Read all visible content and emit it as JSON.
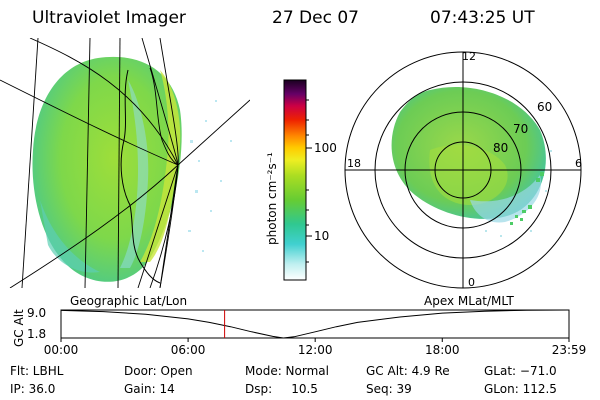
{
  "header": {
    "title": "Ultraviolet Imager",
    "date": "27 Dec 07",
    "time": "07:43:25 UT"
  },
  "colorbar": {
    "label": "photon cm⁻²s⁻¹",
    "ticks": [
      "100",
      "10"
    ]
  },
  "polar": {
    "mlt_labels": {
      "top": "12",
      "left": "18",
      "right": "6",
      "bottom": "0"
    },
    "lat_labels": [
      "60",
      "70",
      "80"
    ]
  },
  "panels": {
    "left_caption": "Geographic Lat/Lon",
    "right_caption": "Apex MLat/MLT"
  },
  "chart_data": {
    "type": "line",
    "title": "",
    "ylabel": "GC Alt",
    "ytick_labels": [
      "9.0",
      "1.8"
    ],
    "ylim": [
      1.8,
      9.0
    ],
    "xtick_labels": [
      "00:00",
      "06:00",
      "12:00",
      "18:00",
      "23:59"
    ],
    "xlim_hours": [
      0,
      23.983
    ],
    "current_time_hours": 7.724,
    "series": [
      {
        "name": "GC Alt",
        "x": [
          0,
          2,
          4,
          6,
          7,
          8,
          9,
          10,
          10.5,
          11,
          12,
          13,
          14,
          16,
          18,
          20,
          22,
          23.983
        ],
        "y": [
          8.9,
          8.6,
          7.9,
          6.7,
          5.8,
          4.7,
          3.4,
          2.2,
          1.8,
          2.1,
          3.4,
          4.7,
          5.8,
          7.2,
          8.2,
          8.7,
          8.95,
          9.0
        ]
      }
    ]
  },
  "status": {
    "filter": "Flt: LBHL",
    "ip": "IP: 36.0",
    "door": "Door: Open",
    "gain": "Gain: 14",
    "mode": "Mode: Normal",
    "dsp": "Dsp:     10.5",
    "gc_alt": "GC Alt: 4.9 Re",
    "seq": "Seq: 39",
    "glat": "GLat: −71.0",
    "glon": "GLon: 112.5"
  }
}
